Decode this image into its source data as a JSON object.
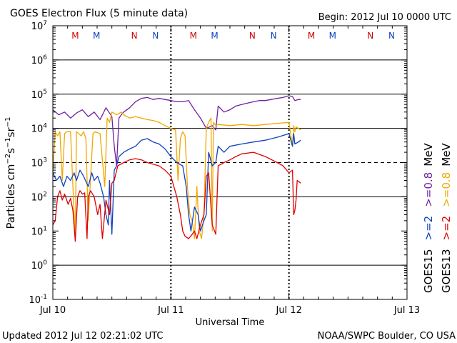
{
  "page": {
    "title": "GOES Electron Flux (5 minute data)",
    "begin": "Begin: 2012 Jul 10 0000 UTC",
    "updated": "Updated 2012 Jul 12 02:21:02 UTC",
    "credit": "NOAA/SWPC Boulder, CO USA"
  },
  "chart_data": {
    "type": "line",
    "title": "GOES Electron Flux (5 minute data)",
    "xlabel": "Universal Time",
    "ylabel": "Particles cm-2s-1sr-1",
    "x_unit": "days since 2012 Jul 10 00:00 UTC",
    "xlim": [
      0,
      3
    ],
    "x_ticks": [
      {
        "value": 0,
        "label": "Jul 10"
      },
      {
        "value": 1,
        "label": "Jul 11"
      },
      {
        "value": 2,
        "label": "Jul 12"
      },
      {
        "value": 3,
        "label": "Jul 13"
      }
    ],
    "ylim": [
      0.1,
      10000000
    ],
    "y_scale": "log",
    "y_ticks": [
      {
        "value": 10000000,
        "base": "10",
        "exp": "7"
      },
      {
        "value": 1000000,
        "base": "10",
        "exp": "6"
      },
      {
        "value": 100000,
        "base": "10",
        "exp": "5"
      },
      {
        "value": 10000,
        "base": "10",
        "exp": "4"
      },
      {
        "value": 1000,
        "base": "10",
        "exp": "3"
      },
      {
        "value": 100,
        "base": "10",
        "exp": "2"
      },
      {
        "value": 10,
        "base": "10",
        "exp": "1"
      },
      {
        "value": 1,
        "base": "10",
        "exp": "0"
      },
      {
        "value": 0.1,
        "base": "10",
        "exp": "-1"
      }
    ],
    "solid_gridlines": [
      1,
      100,
      10000,
      100000,
      1000000
    ],
    "dashed_threshold": 1000,
    "day_dividers": [
      1,
      2
    ],
    "markers": [
      {
        "x": 0.19,
        "label": "M",
        "color": "#d00000"
      },
      {
        "x": 0.37,
        "label": "M",
        "color": "#1040c0"
      },
      {
        "x": 0.69,
        "label": "N",
        "color": "#d00000"
      },
      {
        "x": 0.87,
        "label": "N",
        "color": "#1040c0"
      },
      {
        "x": 1.19,
        "label": "M",
        "color": "#d00000"
      },
      {
        "x": 1.37,
        "label": "M",
        "color": "#1040c0"
      },
      {
        "x": 1.69,
        "label": "N",
        "color": "#d00000"
      },
      {
        "x": 1.87,
        "label": "N",
        "color": "#1040c0"
      },
      {
        "x": 2.19,
        "label": "M",
        "color": "#d00000"
      },
      {
        "x": 2.37,
        "label": "M",
        "color": "#1040c0"
      },
      {
        "x": 2.69,
        "label": "N",
        "color": "#d00000"
      },
      {
        "x": 2.87,
        "label": "N",
        "color": "#1040c0"
      }
    ],
    "legend": [
      {
        "sat": "GOES15",
        "energy": ">=2",
        "color": "#1040c0"
      },
      {
        "sat": "GOES15",
        "energy": ">=0.8 MeV",
        "color": "#7020a0"
      },
      {
        "sat": "GOES13",
        "energy": ">=2",
        "color": "#e00000"
      },
      {
        "sat": "GOES13",
        "energy": ">=0.8 MeV",
        "color": "#f0a800"
      }
    ],
    "legend_labels": {
      "goes15": "GOES15",
      "goes13": "GOES13",
      "ge2": ">=2",
      "ge08": ">=0.8",
      "mev": "MeV"
    },
    "series": [
      {
        "name": "GOES15 >=0.8 MeV",
        "color": "#7020a0",
        "x": [
          0.0,
          0.05,
          0.1,
          0.15,
          0.2,
          0.25,
          0.3,
          0.35,
          0.4,
          0.45,
          0.5,
          0.52,
          0.54,
          0.56,
          0.58,
          0.6,
          0.65,
          0.7,
          0.75,
          0.8,
          0.85,
          0.9,
          0.95,
          1.0,
          1.05,
          1.1,
          1.15,
          1.2,
          1.25,
          1.3,
          1.35,
          1.38,
          1.4,
          1.45,
          1.5,
          1.55,
          1.6,
          1.65,
          1.7,
          1.75,
          1.8,
          1.85,
          1.9,
          1.95,
          2.0,
          2.03,
          2.05,
          2.08,
          2.1
        ],
        "values": [
          35000,
          25000,
          30000,
          20000,
          28000,
          35000,
          22000,
          30000,
          18000,
          40000,
          22000,
          3000,
          800,
          20000,
          25000,
          30000,
          40000,
          60000,
          75000,
          80000,
          70000,
          75000,
          70000,
          65000,
          60000,
          60000,
          65000,
          35000,
          20000,
          10000,
          12000,
          9000,
          45000,
          30000,
          35000,
          45000,
          50000,
          55000,
          60000,
          65000,
          65000,
          70000,
          75000,
          80000,
          90000,
          85000,
          65000,
          70000,
          70000
        ]
      },
      {
        "name": "GOES13 >=0.8 MeV",
        "color": "#f0a800",
        "x": [
          0.0,
          0.02,
          0.04,
          0.06,
          0.08,
          0.1,
          0.12,
          0.15,
          0.17,
          0.19,
          0.2,
          0.24,
          0.26,
          0.28,
          0.3,
          0.34,
          0.36,
          0.4,
          0.44,
          0.46,
          0.48,
          0.5,
          0.54,
          0.58,
          0.6,
          0.65,
          0.7,
          0.75,
          0.8,
          0.85,
          0.9,
          0.95,
          1.0,
          1.04,
          1.06,
          1.08,
          1.1,
          1.12,
          1.14,
          1.16,
          1.18,
          1.2,
          1.22,
          1.24,
          1.26,
          1.28,
          1.3,
          1.32,
          1.34,
          1.35,
          1.36,
          1.38,
          1.4,
          1.5,
          1.6,
          1.7,
          1.8,
          1.9,
          2.0,
          2.03,
          2.04,
          2.05,
          2.06,
          2.08,
          2.1
        ],
        "values": [
          500,
          8000,
          6000,
          8000,
          300,
          7000,
          8000,
          8000,
          200,
          6,
          8000,
          6000,
          8000,
          5000,
          20,
          7000,
          8000,
          7000,
          200,
          20000,
          15000,
          30000,
          25000,
          30000,
          25000,
          20000,
          22000,
          20000,
          18000,
          17000,
          15000,
          12000,
          10000,
          9000,
          300,
          5000,
          8000,
          6000,
          200,
          30,
          20,
          6,
          200,
          10,
          6,
          30,
          10000,
          15000,
          20000,
          10,
          15000,
          12000,
          13000,
          12000,
          13000,
          12000,
          13000,
          14000,
          15000,
          3000,
          12000,
          8000,
          11000,
          10000,
          9000
        ]
      },
      {
        "name": "GOES15 >=2 MeV",
        "color": "#1040c0",
        "x": [
          0.0,
          0.03,
          0.06,
          0.09,
          0.12,
          0.15,
          0.18,
          0.2,
          0.23,
          0.26,
          0.3,
          0.33,
          0.35,
          0.38,
          0.4,
          0.43,
          0.45,
          0.47,
          0.48,
          0.5,
          0.52,
          0.54,
          0.56,
          0.6,
          0.65,
          0.7,
          0.75,
          0.8,
          0.85,
          0.9,
          0.95,
          1.0,
          1.05,
          1.1,
          1.13,
          1.15,
          1.17,
          1.2,
          1.23,
          1.25,
          1.28,
          1.3,
          1.32,
          1.35,
          1.38,
          1.4,
          1.45,
          1.5,
          1.6,
          1.7,
          1.8,
          1.9,
          2.0,
          2.03,
          2.04,
          2.05,
          2.08,
          2.1
        ],
        "values": [
          500,
          300,
          400,
          200,
          400,
          300,
          500,
          300,
          600,
          400,
          200,
          500,
          300,
          400,
          250,
          100,
          30,
          15,
          300,
          8,
          600,
          800,
          1500,
          2000,
          2500,
          3000,
          4500,
          5000,
          4000,
          3500,
          2500,
          1500,
          1000,
          800,
          200,
          30,
          10,
          50,
          30,
          10,
          20,
          30,
          2000,
          800,
          1000,
          3000,
          2000,
          3000,
          3500,
          4000,
          4500,
          5500,
          7000,
          3000,
          7000,
          3500,
          4000,
          4500
        ]
      },
      {
        "name": "GOES13 >=2 MeV",
        "color": "#e00000",
        "x": [
          0.0,
          0.02,
          0.04,
          0.06,
          0.08,
          0.1,
          0.13,
          0.15,
          0.17,
          0.19,
          0.21,
          0.23,
          0.25,
          0.27,
          0.29,
          0.3,
          0.32,
          0.35,
          0.38,
          0.4,
          0.42,
          0.45,
          0.48,
          0.5,
          0.52,
          0.55,
          0.6,
          0.65,
          0.7,
          0.75,
          0.8,
          0.85,
          0.9,
          0.95,
          1.0,
          1.05,
          1.08,
          1.1,
          1.12,
          1.15,
          1.18,
          1.2,
          1.22,
          1.25,
          1.28,
          1.3,
          1.32,
          1.35,
          1.38,
          1.4,
          1.45,
          1.5,
          1.55,
          1.6,
          1.7,
          1.8,
          1.9,
          1.95,
          2.0,
          2.03,
          2.04,
          2.05,
          2.06,
          2.07,
          2.1
        ],
        "values": [
          15,
          20,
          100,
          150,
          80,
          120,
          60,
          90,
          40,
          5,
          100,
          150,
          120,
          130,
          6,
          100,
          150,
          100,
          30,
          60,
          6,
          80,
          30,
          250,
          300,
          800,
          1000,
          1200,
          1300,
          1200,
          1000,
          900,
          800,
          600,
          400,
          100,
          30,
          10,
          7,
          6,
          8,
          10,
          6,
          15,
          30,
          400,
          500,
          15,
          8,
          800,
          1000,
          1200,
          1500,
          1800,
          2000,
          1500,
          1000,
          800,
          500,
          600,
          30,
          40,
          80,
          300,
          250
        ]
      }
    ]
  }
}
